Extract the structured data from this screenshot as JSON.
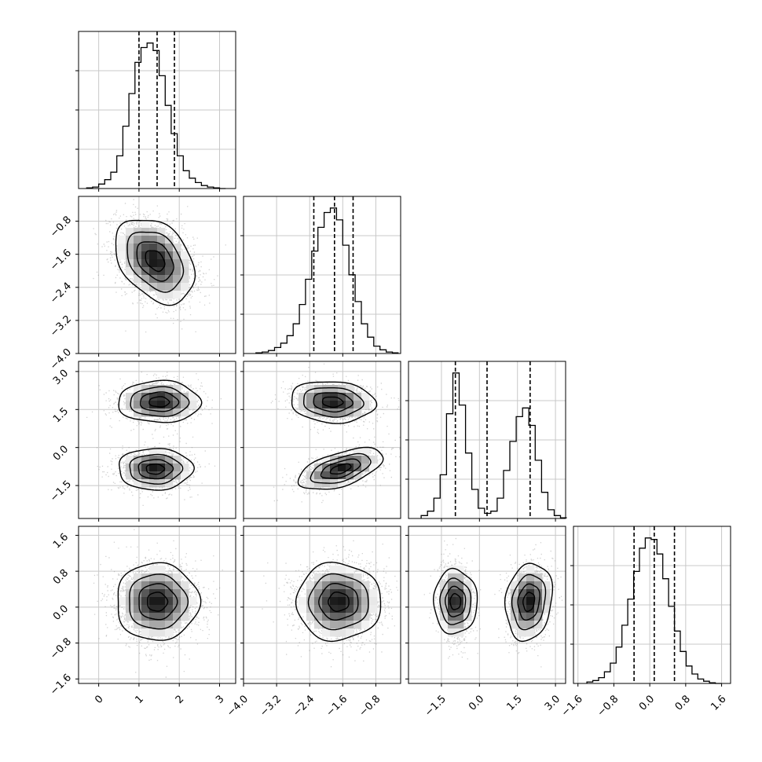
{
  "chart_data": {
    "type": "corner",
    "grid": true,
    "parameters": [
      {
        "range": [
          -0.5,
          3.4
        ],
        "ticks": [
          0,
          1,
          2,
          3
        ],
        "tick_labels": [
          "0",
          "1",
          "2",
          "3"
        ],
        "marginal": {
          "type": "histogram",
          "quantile_lines": [
            1.0,
            1.45,
            1.88
          ],
          "bin_edges": [
            -0.3,
            -0.15,
            0.0,
            0.15,
            0.3,
            0.45,
            0.6,
            0.75,
            0.9,
            1.05,
            1.2,
            1.35,
            1.5,
            1.65,
            1.8,
            1.95,
            2.1,
            2.25,
            2.4,
            2.55,
            2.7,
            2.85,
            3.0,
            3.15
          ],
          "counts": [
            0.005,
            0.01,
            0.03,
            0.06,
            0.11,
            0.22,
            0.42,
            0.64,
            0.85,
            0.95,
            0.98,
            0.93,
            0.76,
            0.56,
            0.37,
            0.22,
            0.12,
            0.07,
            0.04,
            0.02,
            0.01,
            0.005,
            0.0
          ]
        }
      },
      {
        "range": [
          -4.0,
          -0.2
        ],
        "ticks": [
          -4.0,
          -3.2,
          -2.4,
          -1.6,
          -0.8
        ],
        "tick_labels": [
          "−4.0",
          "−3.2",
          "−2.4",
          "−1.6",
          "−0.8"
        ],
        "marginal": {
          "type": "histogram",
          "quantile_lines": [
            -2.3,
            -1.8,
            -1.35
          ],
          "bin_edges": [
            -3.7,
            -3.55,
            -3.4,
            -3.25,
            -3.1,
            -2.95,
            -2.8,
            -2.65,
            -2.5,
            -2.35,
            -2.2,
            -2.05,
            -1.9,
            -1.75,
            -1.6,
            -1.45,
            -1.3,
            -1.15,
            -1.0,
            -0.85,
            -0.7,
            -0.55,
            -0.4,
            -0.25
          ],
          "counts": [
            0.005,
            0.01,
            0.02,
            0.04,
            0.07,
            0.12,
            0.2,
            0.33,
            0.5,
            0.69,
            0.85,
            0.95,
            0.98,
            0.9,
            0.73,
            0.53,
            0.35,
            0.2,
            0.11,
            0.05,
            0.025,
            0.01,
            0.005
          ]
        }
      },
      {
        "range": [
          -2.8,
          3.4
        ],
        "ticks": [
          -1.5,
          0.0,
          1.5,
          3.0
        ],
        "tick_labels": [
          "−1.5",
          "0.0",
          "1.5",
          "3.0"
        ],
        "marginal": {
          "type": "histogram",
          "quantile_lines": [
            -0.95,
            0.3,
            2.0
          ],
          "bin_edges": [
            -2.3,
            -2.05,
            -1.8,
            -1.55,
            -1.3,
            -1.05,
            -0.8,
            -0.55,
            -0.3,
            -0.05,
            0.2,
            0.45,
            0.7,
            0.95,
            1.2,
            1.45,
            1.7,
            1.95,
            2.2,
            2.45,
            2.7,
            2.95,
            3.2,
            3.45
          ],
          "counts": [
            0.02,
            0.05,
            0.14,
            0.3,
            0.72,
            1.0,
            0.78,
            0.45,
            0.2,
            0.07,
            0.035,
            0.05,
            0.14,
            0.33,
            0.53,
            0.7,
            0.76,
            0.64,
            0.4,
            0.18,
            0.06,
            0.02,
            0.005
          ]
        }
      },
      {
        "range": [
          -1.7,
          1.8
        ],
        "ticks": [
          -1.6,
          -0.8,
          0.0,
          0.8,
          1.6
        ],
        "tick_labels": [
          "−1.6",
          "−0.8",
          "0.0",
          "0.8",
          "1.6"
        ],
        "marginal": {
          "type": "histogram",
          "quantile_lines": [
            -0.35,
            0.1,
            0.55
          ],
          "bin_edges": [
            -1.4,
            -1.27,
            -1.14,
            -1.01,
            -0.88,
            -0.75,
            -0.62,
            -0.49,
            -0.36,
            -0.23,
            -0.1,
            0.03,
            0.16,
            0.29,
            0.42,
            0.55,
            0.68,
            0.81,
            0.94,
            1.07,
            1.2,
            1.33,
            1.46,
            1.59
          ],
          "counts": [
            0.01,
            0.02,
            0.04,
            0.08,
            0.14,
            0.25,
            0.4,
            0.58,
            0.77,
            0.93,
            1.0,
            0.99,
            0.89,
            0.72,
            0.53,
            0.36,
            0.22,
            0.12,
            0.065,
            0.03,
            0.015,
            0.005,
            0.0
          ]
        }
      }
    ],
    "pairs": [
      {
        "x_param": 0,
        "y_param": 1,
        "type": "density-contour",
        "components": [
          {
            "center": [
              1.4,
              -1.75
            ],
            "sigma": [
              0.48,
              0.5
            ],
            "rho": -0.35
          }
        ]
      },
      {
        "x_param": 0,
        "y_param": 2,
        "type": "density-contour",
        "components": [
          {
            "center": [
              1.5,
              1.8
            ],
            "sigma": [
              0.5,
              0.4
            ],
            "rho": 0.0
          },
          {
            "center": [
              1.4,
              -0.85
            ],
            "sigma": [
              0.45,
              0.4
            ],
            "rho": 0.0
          }
        ]
      },
      {
        "x_param": 1,
        "y_param": 2,
        "type": "density-contour",
        "components": [
          {
            "center": [
              -1.85,
              1.8
            ],
            "sigma": [
              0.5,
              0.4
            ],
            "rho": -0.1
          },
          {
            "center": [
              -1.65,
              -0.85
            ],
            "sigma": [
              0.5,
              0.4
            ],
            "rho": 0.55
          }
        ]
      },
      {
        "x_param": 0,
        "y_param": 3,
        "type": "density-contour",
        "components": [
          {
            "center": [
              1.45,
              0.12
            ],
            "sigma": [
              0.5,
              0.42
            ],
            "rho": 0.0
          }
        ]
      },
      {
        "x_param": 1,
        "y_param": 3,
        "type": "density-contour",
        "components": [
          {
            "center": [
              -1.7,
              0.12
            ],
            "sigma": [
              0.5,
              0.42
            ],
            "rho": 0.0
          }
        ]
      },
      {
        "x_param": 2,
        "y_param": 3,
        "type": "density-contour",
        "components": [
          {
            "center": [
              -0.95,
              0.12
            ],
            "sigma": [
              0.35,
              0.42
            ],
            "rho": 0.0
          },
          {
            "center": [
              1.95,
              0.12
            ],
            "sigma": [
              0.45,
              0.42
            ],
            "rho": 0.15
          }
        ]
      }
    ],
    "contour_levels": [
      0.12,
      0.4,
      0.7,
      0.88
    ]
  }
}
